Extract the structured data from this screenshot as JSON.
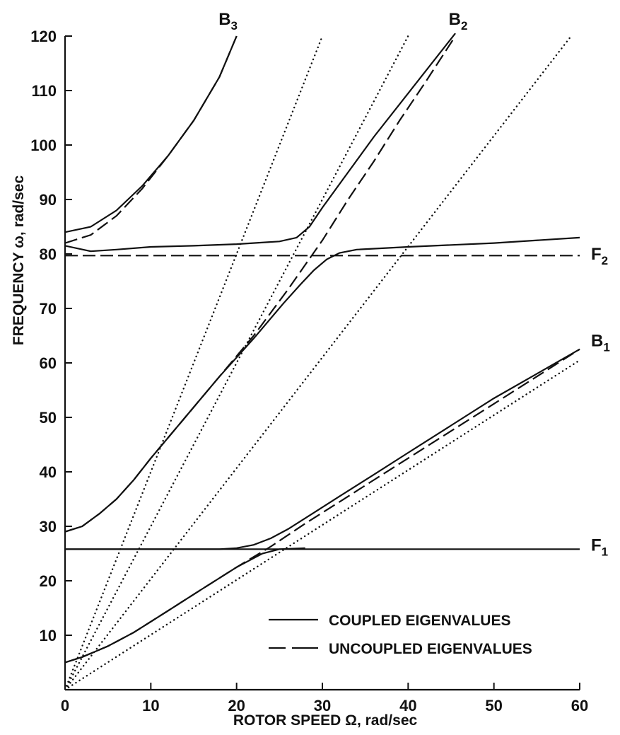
{
  "chart_data": {
    "type": "line",
    "title": "",
    "xlabel": "ROTOR SPEED Ω, rad/sec",
    "ylabel": "FREQUENCY ω, rad/sec",
    "xlim": [
      0,
      60
    ],
    "ylim": [
      0,
      120
    ],
    "x_ticks": [
      "0",
      "10",
      "20",
      "30",
      "40",
      "50",
      "60"
    ],
    "y_ticks": [
      "10",
      "20",
      "30",
      "40",
      "50",
      "60",
      "70",
      "80",
      "90",
      "100",
      "110",
      "120"
    ],
    "grid": false,
    "legend": {
      "placement": "bottom-right",
      "entries": [
        {
          "label": "COUPLED EIGENVALUES",
          "style": "solid"
        },
        {
          "label": "UNCOUPLED EIGENVALUES",
          "style": "dashed"
        }
      ]
    },
    "curve_labels": [
      {
        "main": "B",
        "sub": "3",
        "x": 19.5,
        "y": 120
      },
      {
        "main": "B",
        "sub": "2",
        "x": 45.5,
        "y": 120
      },
      {
        "main": "F",
        "sub": "2",
        "x": 60,
        "y": 80
      },
      {
        "main": "B",
        "sub": "1",
        "x": 60,
        "y": 62
      },
      {
        "main": "F",
        "sub": "1",
        "x": 60,
        "y": 25.5
      }
    ],
    "series": [
      {
        "style": "solid",
        "points": [
          [
            0,
            84
          ],
          [
            3,
            85
          ],
          [
            6,
            88
          ],
          [
            9,
            92.5
          ],
          [
            12,
            98
          ],
          [
            15,
            104.5
          ],
          [
            18,
            112.5
          ],
          [
            20,
            120
          ]
        ]
      },
      {
        "style": "dashed",
        "points": [
          [
            0,
            82
          ],
          [
            3,
            83.5
          ],
          [
            6,
            87
          ],
          [
            9,
            92
          ],
          [
            12,
            98
          ],
          [
            15,
            104.5
          ],
          [
            18,
            112.5
          ],
          [
            20,
            120
          ]
        ]
      },
      {
        "style": "solid",
        "points": [
          [
            0,
            81.5
          ],
          [
            3,
            80.5
          ],
          [
            6,
            80.8
          ],
          [
            10,
            81.3
          ],
          [
            15,
            81.5
          ],
          [
            20,
            81.8
          ],
          [
            25,
            82.3
          ],
          [
            27,
            83
          ],
          [
            28.5,
            85
          ],
          [
            30,
            88.5
          ],
          [
            33,
            95
          ],
          [
            36,
            101.5
          ],
          [
            39,
            107.5
          ],
          [
            42,
            113.5
          ],
          [
            45.5,
            120.5
          ]
        ]
      },
      {
        "style": "dashed",
        "points": [
          [
            0,
            29
          ],
          [
            2,
            30
          ],
          [
            4,
            32.3
          ],
          [
            6,
            35
          ],
          [
            8,
            38.5
          ],
          [
            10,
            42.5
          ],
          [
            14,
            50
          ],
          [
            18,
            57.5
          ],
          [
            22,
            65
          ],
          [
            26,
            73.5
          ],
          [
            28,
            78
          ],
          [
            30,
            82.5
          ],
          [
            33,
            90
          ],
          [
            36,
            97
          ],
          [
            39,
            104.5
          ],
          [
            42,
            111.5
          ],
          [
            45.5,
            120
          ]
        ]
      },
      {
        "style": "solid",
        "points": [
          [
            0,
            29
          ],
          [
            2,
            30
          ],
          [
            4,
            32.3
          ],
          [
            6,
            35
          ],
          [
            8,
            38.5
          ],
          [
            10,
            42.5
          ],
          [
            14,
            50
          ],
          [
            18,
            57.5
          ],
          [
            22,
            64.5
          ],
          [
            25.5,
            71
          ],
          [
            27.5,
            74.5
          ],
          [
            29,
            77
          ],
          [
            30.5,
            79
          ],
          [
            32,
            80.2
          ],
          [
            34,
            80.8
          ],
          [
            40,
            81.3
          ],
          [
            50,
            82
          ],
          [
            60,
            83
          ]
        ]
      },
      {
        "style": "dashed",
        "points": [
          [
            0,
            79.7
          ],
          [
            60,
            79.7
          ]
        ]
      },
      {
        "style": "solid",
        "points": [
          [
            0,
            5
          ],
          [
            2,
            6
          ],
          [
            5,
            8
          ],
          [
            8,
            10.5
          ],
          [
            12,
            14.5
          ],
          [
            16,
            18.5
          ],
          [
            20,
            22.5
          ],
          [
            23,
            25
          ],
          [
            25,
            25.8
          ],
          [
            28,
            26
          ]
        ]
      },
      {
        "style": "solid",
        "points": [
          [
            0,
            25.8
          ],
          [
            10,
            25.8
          ],
          [
            18,
            25.8
          ],
          [
            20,
            26
          ],
          [
            22,
            26.6
          ],
          [
            24,
            27.8
          ],
          [
            26,
            29.5
          ],
          [
            29,
            32.5
          ],
          [
            32,
            35.5
          ],
          [
            36,
            39.5
          ],
          [
            40,
            43.5
          ],
          [
            45,
            48.5
          ],
          [
            50,
            53.5
          ],
          [
            55,
            58
          ],
          [
            60,
            62.5
          ]
        ]
      },
      {
        "style": "dashed",
        "points": [
          [
            0,
            5
          ],
          [
            2,
            6
          ],
          [
            5,
            8
          ],
          [
            8,
            10.5
          ],
          [
            12,
            14.5
          ],
          [
            16,
            18.5
          ],
          [
            20,
            22.5
          ],
          [
            24,
            26.3
          ],
          [
            28,
            30.5
          ],
          [
            32,
            34.5
          ],
          [
            36,
            38.5
          ],
          [
            40,
            42.5
          ],
          [
            45,
            47.5
          ],
          [
            50,
            52.5
          ],
          [
            55,
            57.5
          ],
          [
            60,
            62.5
          ]
        ]
      },
      {
        "style": "solid",
        "points": [
          [
            0,
            25.8
          ],
          [
            60,
            25.8
          ]
        ]
      },
      {
        "style": "dotted",
        "points": [
          [
            0,
            0
          ],
          [
            60,
            60.5
          ]
        ]
      },
      {
        "style": "dotted",
        "points": [
          [
            0,
            0
          ],
          [
            59,
            120
          ]
        ]
      },
      {
        "style": "dotted",
        "points": [
          [
            0,
            0
          ],
          [
            40,
            120
          ]
        ]
      },
      {
        "style": "dotted",
        "points": [
          [
            0,
            0
          ],
          [
            30,
            120
          ]
        ]
      }
    ]
  }
}
